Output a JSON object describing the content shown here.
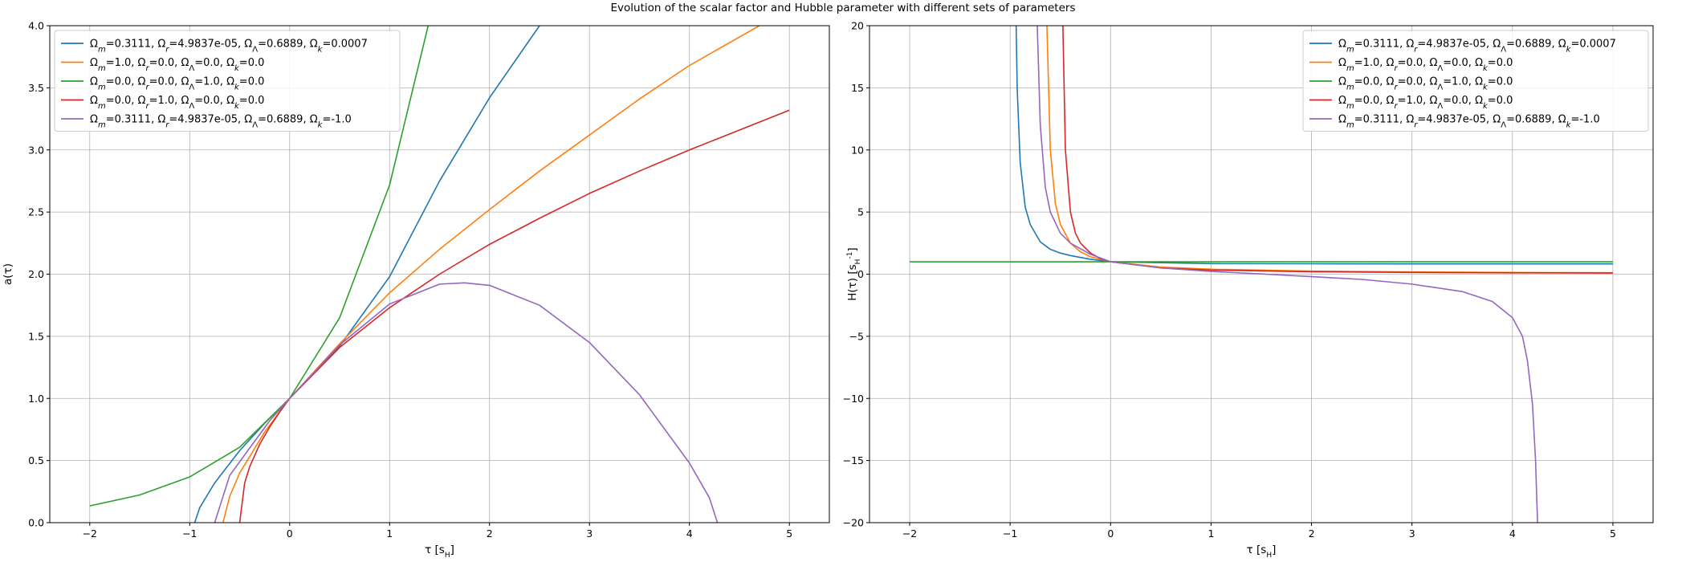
{
  "suptitle": "Evolution of the scalar factor and Hubble parameter with different sets of parameters",
  "colors": {
    "blue": "#1f77b4",
    "orange": "#ff7f0e",
    "green": "#2ca02c",
    "red": "#d62728",
    "purple": "#9467bd"
  },
  "chart_data": [
    {
      "type": "line",
      "xlabel": "τ [s_H]",
      "ylabel": "a(τ)",
      "xlim": [
        -2.4,
        5.4
      ],
      "ylim": [
        0.0,
        4.0
      ],
      "xticks": [
        -2,
        -1,
        0,
        1,
        2,
        3,
        4,
        5
      ],
      "yticks": [
        0.0,
        0.5,
        1.0,
        1.5,
        2.0,
        2.5,
        3.0,
        3.5,
        4.0
      ],
      "grid": true,
      "legend_position": "upper-left",
      "series": [
        {
          "name": "Ωm=0.3111, Ωr=4.9837e-05, ΩΛ=0.6889, Ωk=0.0007",
          "color": "#1f77b4",
          "x": [
            -0.95,
            -0.9,
            -0.75,
            -0.5,
            -0.25,
            0.0,
            0.5,
            1.0,
            1.5,
            2.0,
            2.5
          ],
          "y": [
            0.0,
            0.12,
            0.32,
            0.58,
            0.8,
            1.0,
            1.42,
            1.98,
            2.75,
            3.42,
            4.0
          ]
        },
        {
          "name": "Ωm=1.0, Ωr=0.0, ΩΛ=0.0, Ωk=0.0",
          "color": "#ff7f0e",
          "x": [
            -0.667,
            -0.6,
            -0.5,
            -0.25,
            0.0,
            0.5,
            1.0,
            1.5,
            2.0,
            2.5,
            3.0,
            3.5,
            4.0,
            4.7
          ],
          "y": [
            0.0,
            0.21,
            0.4,
            0.73,
            1.0,
            1.44,
            1.85,
            2.2,
            2.52,
            2.83,
            3.12,
            3.41,
            3.68,
            4.0
          ]
        },
        {
          "name": "Ωm=0.0, Ωr=0.0, ΩΛ=1.0, Ωk=0.0",
          "color": "#2ca02c",
          "x": [
            -2.0,
            -1.5,
            -1.0,
            -0.5,
            0.0,
            0.5,
            1.0,
            1.386
          ],
          "y": [
            0.135,
            0.223,
            0.368,
            0.607,
            1.0,
            1.649,
            2.718,
            4.0
          ]
        },
        {
          "name": "Ωm=0.0, Ωr=1.0, ΩΛ=0.0, Ωk=0.0",
          "color": "#d62728",
          "x": [
            -0.5,
            -0.45,
            -0.4,
            -0.3,
            -0.2,
            -0.1,
            0.0,
            0.5,
            1.0,
            1.5,
            2.0,
            2.5,
            3.0,
            3.5,
            4.0,
            4.5,
            5.0
          ],
          "y": [
            0.0,
            0.32,
            0.45,
            0.63,
            0.77,
            0.89,
            1.0,
            1.41,
            1.73,
            2.0,
            2.24,
            2.45,
            2.65,
            2.83,
            3.0,
            3.16,
            3.32
          ]
        },
        {
          "name": "Ωm=0.3111, Ωr=4.9837e-05, ΩΛ=0.6889, Ωk=-1.0",
          "color": "#9467bd",
          "x": [
            -0.75,
            -0.6,
            -0.4,
            -0.2,
            0.0,
            0.5,
            1.0,
            1.5,
            1.75,
            2.0,
            2.5,
            3.0,
            3.5,
            4.0,
            4.2,
            4.28
          ],
          "y": [
            0.0,
            0.38,
            0.6,
            0.82,
            1.0,
            1.43,
            1.76,
            1.92,
            1.93,
            1.91,
            1.75,
            1.45,
            1.03,
            0.48,
            0.2,
            0.0
          ]
        }
      ]
    },
    {
      "type": "line",
      "xlabel": "τ [s_H]",
      "ylabel": "H(τ) [s_H^-1]",
      "xlim": [
        -2.4,
        5.4
      ],
      "ylim": [
        -20,
        20
      ],
      "xticks": [
        -2,
        -1,
        0,
        1,
        2,
        3,
        4,
        5
      ],
      "yticks": [
        -20,
        -15,
        -10,
        -5,
        0,
        5,
        10,
        15,
        20
      ],
      "grid": true,
      "legend_position": "upper-right",
      "series": [
        {
          "name": "Ωm=0.3111, Ωr=4.9837e-05, ΩΛ=0.6889, Ωk=0.0007",
          "color": "#1f77b4",
          "x": [
            -0.94,
            -0.93,
            -0.9,
            -0.85,
            -0.8,
            -0.7,
            -0.6,
            -0.5,
            -0.4,
            -0.2,
            0.0,
            1.0,
            2.0,
            3.0,
            4.0,
            5.0
          ],
          "y": [
            20.0,
            15.0,
            9.0,
            5.4,
            4.0,
            2.6,
            2.0,
            1.7,
            1.5,
            1.2,
            1.0,
            0.85,
            0.84,
            0.83,
            0.83,
            0.83
          ]
        },
        {
          "name": "Ωm=1.0, Ωr=0.0, ΩΛ=0.0, Ωk=0.0",
          "color": "#ff7f0e",
          "x": [
            -0.634,
            -0.6,
            -0.55,
            -0.5,
            -0.4,
            -0.3,
            -0.2,
            0.0,
            0.5,
            1.0,
            2.0,
            3.0,
            4.0,
            5.0
          ],
          "y": [
            20.0,
            10.0,
            5.7,
            4.0,
            2.5,
            1.8,
            1.4,
            1.0,
            0.57,
            0.4,
            0.25,
            0.18,
            0.14,
            0.12
          ]
        },
        {
          "name": "Ωm=0.0, Ωr=0.0, ΩΛ=1.0, Ωk=0.0",
          "color": "#2ca02c",
          "x": [
            -2.0,
            5.0
          ],
          "y": [
            1.0,
            1.0
          ]
        },
        {
          "name": "Ωm=0.0, Ωr=1.0, ΩΛ=0.0, Ωk=0.0",
          "color": "#d62728",
          "x": [
            -0.475,
            -0.45,
            -0.4,
            -0.35,
            -0.3,
            -0.2,
            -0.1,
            0.0,
            0.5,
            1.0,
            2.0,
            3.0,
            4.0,
            5.0
          ],
          "y": [
            20.0,
            10.0,
            5.0,
            3.3,
            2.5,
            1.7,
            1.25,
            1.0,
            0.5,
            0.33,
            0.2,
            0.14,
            0.11,
            0.09
          ]
        },
        {
          "name": "Ωm=0.3111, Ωr=4.9837e-05, ΩΛ=0.6889, Ωk=-1.0",
          "color": "#9467bd",
          "x": [
            -0.73,
            -0.7,
            -0.65,
            -0.6,
            -0.5,
            -0.4,
            -0.2,
            0.0,
            0.5,
            1.0,
            1.5,
            2.0,
            2.5,
            3.0,
            3.5,
            3.8,
            4.0,
            4.1,
            4.15,
            4.2,
            4.23,
            4.25
          ],
          "y": [
            20.0,
            12.0,
            7.0,
            5.0,
            3.3,
            2.5,
            1.6,
            1.0,
            0.5,
            0.22,
            0.02,
            -0.2,
            -0.42,
            -0.8,
            -1.4,
            -2.2,
            -3.5,
            -5.0,
            -7.0,
            -10.5,
            -15.0,
            -20.0
          ]
        }
      ]
    }
  ]
}
